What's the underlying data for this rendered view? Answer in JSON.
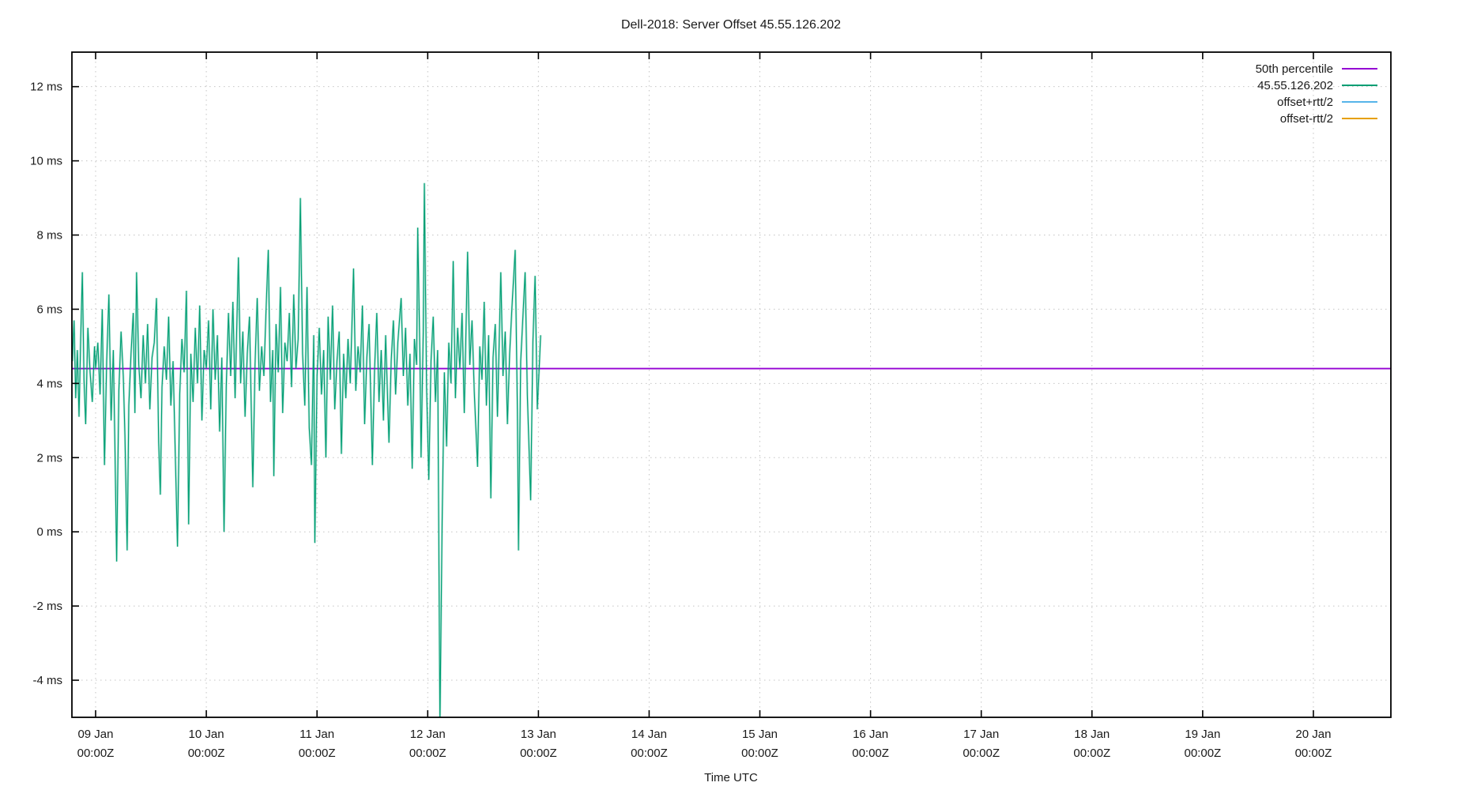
{
  "title": "Dell-2018: Server Offset 45.55.126.202",
  "chart_data": {
    "type": "line",
    "title": "Dell-2018: Server Offset 45.55.126.202",
    "xlabel": "Time UTC",
    "ylabel": "",
    "grid": true,
    "legend_position": "top-right-inside",
    "ylim_ms": [
      -5,
      12.93
    ],
    "xlim_days_from_09jan": [
      -0.214,
      11.7
    ],
    "y_ticks": [
      {
        "value": 12,
        "label": "12 ms"
      },
      {
        "value": 10,
        "label": "10 ms"
      },
      {
        "value": 8,
        "label": "8 ms"
      },
      {
        "value": 6,
        "label": "6 ms"
      },
      {
        "value": 4,
        "label": "4 ms"
      },
      {
        "value": 2,
        "label": "2 ms"
      },
      {
        "value": 0,
        "label": "0 ms"
      },
      {
        "value": -2,
        "label": "-2 ms"
      },
      {
        "value": -4,
        "label": "-4 ms"
      }
    ],
    "x_ticks": [
      {
        "day": 0,
        "line1": "09 Jan",
        "line2": "00:00Z"
      },
      {
        "day": 1,
        "line1": "10 Jan",
        "line2": "00:00Z"
      },
      {
        "day": 2,
        "line1": "11 Jan",
        "line2": "00:00Z"
      },
      {
        "day": 3,
        "line1": "12 Jan",
        "line2": "00:00Z"
      },
      {
        "day": 4,
        "line1": "13 Jan",
        "line2": "00:00Z"
      },
      {
        "day": 5,
        "line1": "14 Jan",
        "line2": "00:00Z"
      },
      {
        "day": 6,
        "line1": "15 Jan",
        "line2": "00:00Z"
      },
      {
        "day": 7,
        "line1": "16 Jan",
        "line2": "00:00Z"
      },
      {
        "day": 8,
        "line1": "17 Jan",
        "line2": "00:00Z"
      },
      {
        "day": 9,
        "line1": "18 Jan",
        "line2": "00:00Z"
      },
      {
        "day": 10,
        "line1": "19 Jan",
        "line2": "00:00Z"
      },
      {
        "day": 11,
        "line1": "20 Jan",
        "line2": "00:00Z"
      }
    ],
    "series": [
      {
        "name": "50th percentile",
        "color": "#9400d3",
        "style": "hline",
        "value_ms": 4.4
      },
      {
        "name": "45.55.126.202",
        "color": "#009e73",
        "style": "line",
        "points_day_ms": [
          [
            -0.21,
            4.6
          ],
          [
            -0.195,
            5.7
          ],
          [
            -0.18,
            3.6
          ],
          [
            -0.165,
            4.9
          ],
          [
            -0.15,
            3.1
          ],
          [
            -0.135,
            5.2
          ],
          [
            -0.12,
            7.0
          ],
          [
            -0.105,
            4.1
          ],
          [
            -0.09,
            2.9
          ],
          [
            -0.07,
            5.5
          ],
          [
            -0.05,
            4.3
          ],
          [
            -0.03,
            3.5
          ],
          [
            -0.01,
            5.0
          ],
          [
            0.0,
            4.4
          ],
          [
            0.02,
            5.1
          ],
          [
            0.04,
            3.7
          ],
          [
            0.06,
            6.0
          ],
          [
            0.08,
            1.8
          ],
          [
            0.1,
            4.6
          ],
          [
            0.12,
            6.4
          ],
          [
            0.14,
            3.0
          ],
          [
            0.16,
            4.9
          ],
          [
            0.175,
            2.2
          ],
          [
            0.19,
            -0.8
          ],
          [
            0.21,
            3.8
          ],
          [
            0.23,
            5.4
          ],
          [
            0.25,
            4.2
          ],
          [
            0.265,
            2.6
          ],
          [
            0.285,
            -0.5
          ],
          [
            0.3,
            3.4
          ],
          [
            0.32,
            4.8
          ],
          [
            0.34,
            5.9
          ],
          [
            0.355,
            3.2
          ],
          [
            0.37,
            7.0
          ],
          [
            0.39,
            4.5
          ],
          [
            0.41,
            3.6
          ],
          [
            0.43,
            5.3
          ],
          [
            0.45,
            4.0
          ],
          [
            0.47,
            5.6
          ],
          [
            0.49,
            3.3
          ],
          [
            0.51,
            4.7
          ],
          [
            0.53,
            5.1
          ],
          [
            0.55,
            6.3
          ],
          [
            0.57,
            2.4
          ],
          [
            0.585,
            1.0
          ],
          [
            0.6,
            3.9
          ],
          [
            0.62,
            5.0
          ],
          [
            0.64,
            4.1
          ],
          [
            0.66,
            5.8
          ],
          [
            0.68,
            3.4
          ],
          [
            0.7,
            4.6
          ],
          [
            0.72,
            2.1
          ],
          [
            0.74,
            -0.4
          ],
          [
            0.76,
            3.7
          ],
          [
            0.78,
            5.2
          ],
          [
            0.8,
            4.3
          ],
          [
            0.82,
            6.5
          ],
          [
            0.84,
            0.2
          ],
          [
            0.86,
            4.8
          ],
          [
            0.88,
            3.5
          ],
          [
            0.9,
            5.5
          ],
          [
            0.92,
            4.0
          ],
          [
            0.94,
            6.1
          ],
          [
            0.96,
            3.0
          ],
          [
            0.98,
            4.9
          ],
          [
            1.0,
            4.4
          ],
          [
            1.02,
            5.7
          ],
          [
            1.04,
            3.3
          ],
          [
            1.06,
            6.0
          ],
          [
            1.08,
            4.1
          ],
          [
            1.1,
            5.3
          ],
          [
            1.12,
            2.7
          ],
          [
            1.14,
            4.7
          ],
          [
            1.16,
            0.0
          ],
          [
            1.18,
            3.9
          ],
          [
            1.2,
            5.9
          ],
          [
            1.22,
            4.2
          ],
          [
            1.24,
            6.2
          ],
          [
            1.26,
            3.6
          ],
          [
            1.29,
            7.4
          ],
          [
            1.31,
            4.0
          ],
          [
            1.33,
            5.4
          ],
          [
            1.35,
            3.1
          ],
          [
            1.37,
            4.8
          ],
          [
            1.39,
            5.8
          ],
          [
            1.42,
            1.2
          ],
          [
            1.44,
            4.5
          ],
          [
            1.46,
            6.3
          ],
          [
            1.48,
            3.8
          ],
          [
            1.5,
            5.0
          ],
          [
            1.52,
            4.2
          ],
          [
            1.54,
            6.0
          ],
          [
            1.56,
            7.6
          ],
          [
            1.58,
            3.5
          ],
          [
            1.6,
            4.9
          ],
          [
            1.61,
            1.5
          ],
          [
            1.63,
            5.6
          ],
          [
            1.65,
            4.3
          ],
          [
            1.67,
            6.6
          ],
          [
            1.69,
            3.2
          ],
          [
            1.71,
            5.1
          ],
          [
            1.73,
            4.6
          ],
          [
            1.75,
            5.9
          ],
          [
            1.77,
            3.9
          ],
          [
            1.79,
            6.4
          ],
          [
            1.81,
            4.4
          ],
          [
            1.83,
            5.2
          ],
          [
            1.85,
            9.0
          ],
          [
            1.87,
            4.8
          ],
          [
            1.89,
            3.4
          ],
          [
            1.91,
            6.6
          ],
          [
            1.93,
            2.8
          ],
          [
            1.95,
            1.8
          ],
          [
            1.97,
            5.3
          ],
          [
            1.98,
            -0.3
          ],
          [
            2.0,
            4.2
          ],
          [
            2.02,
            5.5
          ],
          [
            2.04,
            3.7
          ],
          [
            2.06,
            4.9
          ],
          [
            2.08,
            2.0
          ],
          [
            2.1,
            5.8
          ],
          [
            2.12,
            4.1
          ],
          [
            2.14,
            6.1
          ],
          [
            2.16,
            3.3
          ],
          [
            2.18,
            4.6
          ],
          [
            2.2,
            5.4
          ],
          [
            2.22,
            2.1
          ],
          [
            2.24,
            4.8
          ],
          [
            2.26,
            3.6
          ],
          [
            2.28,
            5.2
          ],
          [
            2.3,
            4.0
          ],
          [
            2.33,
            7.1
          ],
          [
            2.35,
            3.8
          ],
          [
            2.37,
            5.0
          ],
          [
            2.39,
            4.3
          ],
          [
            2.41,
            6.1
          ],
          [
            2.43,
            2.9
          ],
          [
            2.45,
            4.7
          ],
          [
            2.47,
            5.6
          ],
          [
            2.5,
            1.8
          ],
          [
            2.52,
            4.4
          ],
          [
            2.54,
            5.9
          ],
          [
            2.56,
            3.5
          ],
          [
            2.58,
            4.9
          ],
          [
            2.6,
            3.0
          ],
          [
            2.62,
            5.3
          ],
          [
            2.65,
            2.4
          ],
          [
            2.67,
            4.6
          ],
          [
            2.69,
            5.7
          ],
          [
            2.71,
            3.7
          ],
          [
            2.73,
            5.1
          ],
          [
            2.76,
            6.3
          ],
          [
            2.78,
            4.2
          ],
          [
            2.8,
            5.5
          ],
          [
            2.82,
            3.4
          ],
          [
            2.84,
            4.8
          ],
          [
            2.86,
            1.7
          ],
          [
            2.88,
            5.2
          ],
          [
            2.9,
            4.5
          ],
          [
            2.91,
            8.2
          ],
          [
            2.93,
            4.7
          ],
          [
            2.94,
            2.0
          ],
          [
            2.96,
            5.4
          ],
          [
            2.97,
            9.4
          ],
          [
            2.99,
            3.9
          ],
          [
            3.01,
            1.4
          ],
          [
            3.03,
            4.6
          ],
          [
            3.05,
            5.8
          ],
          [
            3.07,
            3.5
          ],
          [
            3.09,
            4.9
          ],
          [
            3.11,
            -5.2
          ],
          [
            3.13,
            0.3
          ],
          [
            3.15,
            4.3
          ],
          [
            3.17,
            2.3
          ],
          [
            3.19,
            5.1
          ],
          [
            3.21,
            4.0
          ],
          [
            3.23,
            7.3
          ],
          [
            3.25,
            3.6
          ],
          [
            3.27,
            5.5
          ],
          [
            3.29,
            4.4
          ],
          [
            3.31,
            5.9
          ],
          [
            3.33,
            3.2
          ],
          [
            3.36,
            7.55
          ],
          [
            3.38,
            4.5
          ],
          [
            3.4,
            5.7
          ],
          [
            3.42,
            3.8
          ],
          [
            3.45,
            1.75
          ],
          [
            3.47,
            5.0
          ],
          [
            3.49,
            4.1
          ],
          [
            3.51,
            6.2
          ],
          [
            3.53,
            3.4
          ],
          [
            3.55,
            5.3
          ],
          [
            3.57,
            0.9
          ],
          [
            3.59,
            4.7
          ],
          [
            3.61,
            5.6
          ],
          [
            3.63,
            3.1
          ],
          [
            3.66,
            7.0
          ],
          [
            3.68,
            4.2
          ],
          [
            3.7,
            5.4
          ],
          [
            3.72,
            2.9
          ],
          [
            3.74,
            4.8
          ],
          [
            3.76,
            6.0
          ],
          [
            3.79,
            7.6
          ],
          [
            3.81,
            3.3
          ],
          [
            3.82,
            -0.5
          ],
          [
            3.84,
            4.6
          ],
          [
            3.86,
            5.8
          ],
          [
            3.88,
            7.0
          ],
          [
            3.9,
            3.7
          ],
          [
            3.93,
            0.85
          ],
          [
            3.95,
            5.1
          ],
          [
            3.97,
            6.9
          ],
          [
            3.99,
            3.3
          ],
          [
            4.01,
            4.6
          ],
          [
            4.02,
            5.3
          ]
        ]
      },
      {
        "name": "offset+rtt/2",
        "color": "#56b4e9",
        "style": "line",
        "points_day_ms": []
      },
      {
        "name": "offset-rtt/2",
        "color": "#e69f00",
        "style": "line",
        "points_day_ms": []
      }
    ]
  },
  "colors": {
    "background": "#ffffff",
    "border": "#000000",
    "grid": "#c4c4c4",
    "text": "#1a1a1a",
    "percentile": "#9400d3",
    "offset": "#009e73",
    "offset_plus_rtt": "#56b4e9",
    "offset_minus_rtt": "#e69f00"
  }
}
